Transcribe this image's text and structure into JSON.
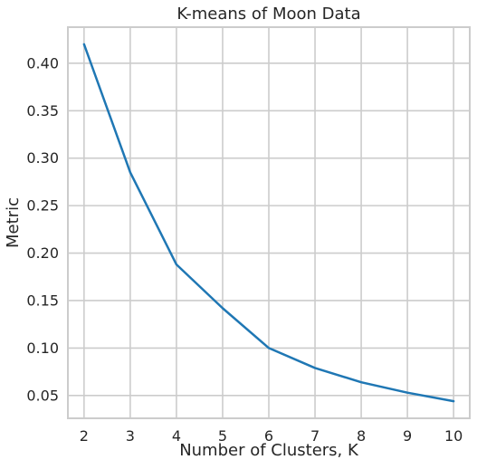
{
  "chart_data": {
    "type": "line",
    "title": "K-means of Moon Data",
    "xlabel": "Number of Clusters, K",
    "ylabel": "Metric",
    "x": [
      2,
      3,
      4,
      5,
      6,
      7,
      8,
      9,
      10
    ],
    "series": [
      {
        "values": [
          0.42,
          0.285,
          0.188,
          0.142,
          0.1,
          0.079,
          0.064,
          0.053,
          0.044
        ],
        "color": "#1f77b4"
      }
    ],
    "xlim": [
      1.65,
      10.35
    ],
    "ylim": [
      0.026,
      0.438
    ],
    "xticks": [
      2,
      3,
      4,
      5,
      6,
      7,
      8,
      9,
      10
    ],
    "yticks": [
      0.05,
      0.1,
      0.15,
      0.2,
      0.25,
      0.3,
      0.35,
      0.4
    ],
    "ytick_labels": [
      "0.05",
      "0.10",
      "0.15",
      "0.20",
      "0.25",
      "0.30",
      "0.35",
      "0.40"
    ],
    "grid": true,
    "legend": false
  }
}
